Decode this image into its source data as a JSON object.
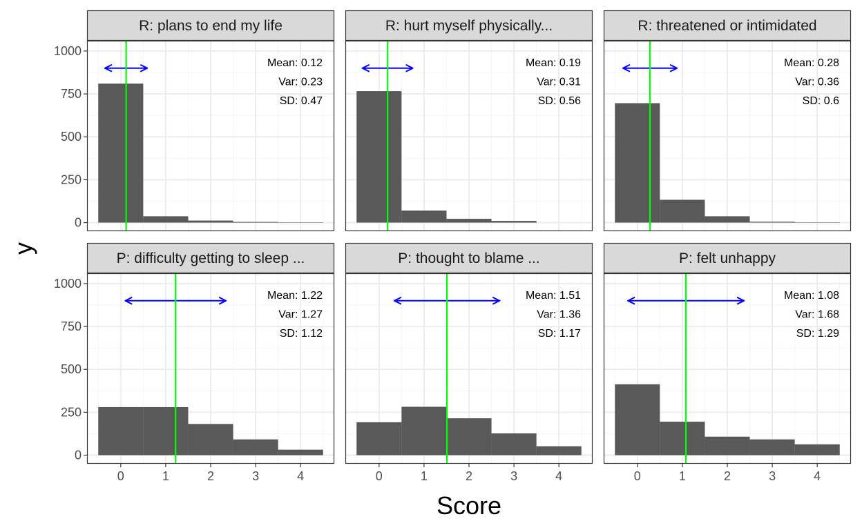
{
  "chart_data": {
    "type": "bar",
    "xlabel": "Score",
    "ylabel": "y",
    "xlim": [
      -0.75,
      4.75
    ],
    "ylim": [
      -50,
      1060
    ],
    "x_ticks": [
      "0",
      "1",
      "2",
      "3",
      "4"
    ],
    "y_ticks": [
      "0",
      "250",
      "500",
      "750",
      "1000"
    ],
    "grid": true,
    "colors": {
      "bar": "#595959",
      "mean_line": "#00ff00",
      "sd_arrow": "#0000ff",
      "strip_bg": "#d9d9d9",
      "grid_major": "#ebebeb",
      "grid_minor": "#f5f5f5",
      "panel_border": "#333333"
    },
    "panels": [
      {
        "title": "R: plans to end my life",
        "categories": [
          0,
          1,
          2,
          3,
          4
        ],
        "values": [
          810,
          37,
          12,
          4,
          2
        ],
        "mean": 0.12,
        "sd": 0.47,
        "stats": [
          "Mean: 0.12",
          "Var: 0.23",
          "SD: 0.47"
        ]
      },
      {
        "title": "R: hurt myself physically...",
        "categories": [
          0,
          1,
          2,
          3
        ],
        "values": [
          766,
          70,
          22,
          10
        ],
        "mean": 0.19,
        "sd": 0.56,
        "stats": [
          "Mean: 0.19",
          "Var: 0.31",
          "SD: 0.56"
        ]
      },
      {
        "title": "R: threatened or intimidated",
        "categories": [
          0,
          1,
          2,
          3,
          4
        ],
        "values": [
          696,
          133,
          37,
          5,
          2
        ],
        "mean": 0.28,
        "sd": 0.6,
        "stats": [
          "Mean: 0.28",
          "Var: 0.36",
          "SD: 0.6"
        ]
      },
      {
        "title": "P: difficulty getting to sleep ...",
        "categories": [
          0,
          1,
          2,
          3,
          4
        ],
        "values": [
          280,
          280,
          182,
          92,
          32
        ],
        "mean": 1.22,
        "sd": 1.12,
        "stats": [
          "Mean: 1.22",
          "Var: 1.27",
          "SD: 1.12"
        ]
      },
      {
        "title": "P: thought to blame ...",
        "categories": [
          0,
          1,
          2,
          3,
          4
        ],
        "values": [
          192,
          282,
          215,
          127,
          52
        ],
        "mean": 1.51,
        "sd": 1.17,
        "stats": [
          "Mean: 1.51",
          "Var: 1.36",
          "SD: 1.17"
        ]
      },
      {
        "title": "P: felt unhappy",
        "categories": [
          0,
          1,
          2,
          3,
          4
        ],
        "values": [
          413,
          195,
          108,
          92,
          63
        ],
        "mean": 1.08,
        "sd": 1.29,
        "stats": [
          "Mean: 1.08",
          "Var: 1.68",
          "SD: 1.29"
        ]
      }
    ]
  }
}
